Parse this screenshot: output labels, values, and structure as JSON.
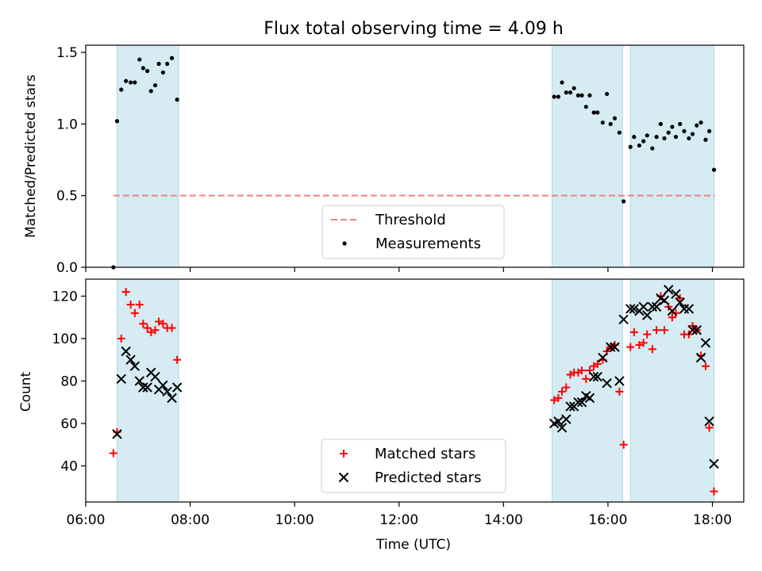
{
  "title": "Flux total observing time = 4.09 h",
  "chart_data": [
    {
      "type": "scatter",
      "ylabel": "Matched/Predicted stars",
      "xlabel": "",
      "xlim": [
        6.0,
        18.6
      ],
      "ylim": [
        0.0,
        1.55
      ],
      "yticks": [
        {
          "v": 0.0,
          "label": "0.0"
        },
        {
          "v": 0.5,
          "label": "0.5"
        },
        {
          "v": 1.0,
          "label": "1.0"
        },
        {
          "v": 1.5,
          "label": "1.5"
        }
      ],
      "shaded_ranges": [
        [
          6.6,
          7.78
        ],
        [
          14.93,
          16.28
        ],
        [
          16.43,
          18.03
        ]
      ],
      "threshold": {
        "name": "Threshold",
        "value": 0.5,
        "x_range": [
          6.53,
          18.05
        ],
        "color": "#f08080"
      },
      "legend": {
        "placement": "lower-center",
        "entries": [
          "Threshold",
          "Measurements"
        ]
      },
      "series": [
        {
          "name": "Measurements",
          "color": "#000000",
          "points": [
            [
              6.53,
              0.0
            ],
            [
              6.6,
              1.02
            ],
            [
              6.68,
              1.24
            ],
            [
              6.77,
              1.3
            ],
            [
              6.86,
              1.29
            ],
            [
              6.94,
              1.29
            ],
            [
              7.03,
              1.45
            ],
            [
              7.1,
              1.39
            ],
            [
              7.18,
              1.37
            ],
            [
              7.25,
              1.23
            ],
            [
              7.33,
              1.27
            ],
            [
              7.4,
              1.42
            ],
            [
              7.48,
              1.36
            ],
            [
              7.56,
              1.42
            ],
            [
              7.65,
              1.46
            ],
            [
              7.75,
              1.17
            ],
            [
              14.97,
              1.19
            ],
            [
              15.05,
              1.19
            ],
            [
              15.12,
              1.29
            ],
            [
              15.2,
              1.22
            ],
            [
              15.28,
              1.22
            ],
            [
              15.35,
              1.25
            ],
            [
              15.43,
              1.2
            ],
            [
              15.5,
              1.2
            ],
            [
              15.58,
              1.12
            ],
            [
              15.65,
              1.2
            ],
            [
              15.73,
              1.08
            ],
            [
              15.8,
              1.08
            ],
            [
              15.9,
              1.01
            ],
            [
              15.98,
              1.21
            ],
            [
              16.05,
              1.0
            ],
            [
              16.13,
              1.04
            ],
            [
              16.22,
              0.94
            ],
            [
              16.3,
              0.46
            ],
            [
              16.43,
              0.84
            ],
            [
              16.5,
              0.91
            ],
            [
              16.6,
              0.85
            ],
            [
              16.68,
              0.88
            ],
            [
              16.75,
              0.92
            ],
            [
              16.85,
              0.83
            ],
            [
              16.93,
              0.91
            ],
            [
              17.01,
              1.0
            ],
            [
              17.08,
              0.9
            ],
            [
              17.16,
              0.94
            ],
            [
              17.23,
              0.98
            ],
            [
              17.3,
              0.91
            ],
            [
              17.38,
              1.0
            ],
            [
              17.46,
              0.95
            ],
            [
              17.55,
              0.9
            ],
            [
              17.62,
              0.93
            ],
            [
              17.7,
              0.99
            ],
            [
              17.78,
              1.01
            ],
            [
              17.87,
              0.89
            ],
            [
              17.94,
              0.95
            ],
            [
              18.03,
              0.68
            ]
          ]
        }
      ]
    },
    {
      "type": "scatter",
      "ylabel": "Count",
      "xlabel": "Time (UTC)",
      "xlim": [
        6.0,
        18.6
      ],
      "ylim": [
        23.0,
        128.0
      ],
      "xticks": [
        {
          "v": 6,
          "label": "06:00"
        },
        {
          "v": 8,
          "label": "08:00"
        },
        {
          "v": 10,
          "label": "10:00"
        },
        {
          "v": 12,
          "label": "12:00"
        },
        {
          "v": 14,
          "label": "14:00"
        },
        {
          "v": 16,
          "label": "16:00"
        },
        {
          "v": 18,
          "label": "18:00"
        }
      ],
      "yticks": [
        {
          "v": 40,
          "label": "40"
        },
        {
          "v": 60,
          "label": "60"
        },
        {
          "v": 80,
          "label": "80"
        },
        {
          "v": 100,
          "label": "100"
        },
        {
          "v": 120,
          "label": "120"
        }
      ],
      "shaded_ranges": [
        [
          6.6,
          7.78
        ],
        [
          14.93,
          16.28
        ],
        [
          16.43,
          18.03
        ]
      ],
      "legend": {
        "placement": "lower-center",
        "entries": [
          "Matched stars",
          "Predicted stars"
        ]
      },
      "series": [
        {
          "name": "Matched stars",
          "marker": "plus",
          "color": "#ff0000",
          "points": [
            [
              6.53,
              46
            ],
            [
              6.6,
              56
            ],
            [
              6.68,
              100
            ],
            [
              6.77,
              122
            ],
            [
              6.86,
              116
            ],
            [
              6.94,
              112
            ],
            [
              7.03,
              116
            ],
            [
              7.1,
              107
            ],
            [
              7.18,
              105
            ],
            [
              7.25,
              103
            ],
            [
              7.33,
              104
            ],
            [
              7.4,
              108
            ],
            [
              7.48,
              107
            ],
            [
              7.56,
              105
            ],
            [
              7.65,
              105
            ],
            [
              7.75,
              90
            ],
            [
              14.97,
              71
            ],
            [
              15.05,
              72
            ],
            [
              15.12,
              75
            ],
            [
              15.2,
              77
            ],
            [
              15.28,
              83
            ],
            [
              15.35,
              84
            ],
            [
              15.43,
              84
            ],
            [
              15.5,
              85
            ],
            [
              15.58,
              81
            ],
            [
              15.65,
              85
            ],
            [
              15.73,
              87
            ],
            [
              15.8,
              88
            ],
            [
              15.9,
              90
            ],
            [
              15.98,
              94
            ],
            [
              16.05,
              96
            ],
            [
              16.13,
              97
            ],
            [
              16.22,
              75
            ],
            [
              16.3,
              50
            ],
            [
              16.43,
              96
            ],
            [
              16.5,
              103
            ],
            [
              16.6,
              97
            ],
            [
              16.68,
              98
            ],
            [
              16.75,
              102
            ],
            [
              16.85,
              95
            ],
            [
              16.93,
              104
            ],
            [
              17.01,
              120
            ],
            [
              17.08,
              104
            ],
            [
              17.16,
              115
            ],
            [
              17.23,
              110
            ],
            [
              17.3,
              112
            ],
            [
              17.38,
              119
            ],
            [
              17.46,
              102
            ],
            [
              17.55,
              102
            ],
            [
              17.62,
              106
            ],
            [
              17.7,
              104
            ],
            [
              17.78,
              92
            ],
            [
              17.87,
              87
            ],
            [
              17.94,
              58
            ],
            [
              18.03,
              28
            ]
          ]
        },
        {
          "name": "Predicted stars",
          "marker": "x",
          "color": "#000000",
          "points": [
            [
              6.6,
              55
            ],
            [
              6.68,
              81
            ],
            [
              6.77,
              94
            ],
            [
              6.86,
              90
            ],
            [
              6.94,
              87
            ],
            [
              7.03,
              80
            ],
            [
              7.1,
              77
            ],
            [
              7.18,
              77
            ],
            [
              7.25,
              84
            ],
            [
              7.33,
              82
            ],
            [
              7.4,
              76
            ],
            [
              7.48,
              78
            ],
            [
              7.56,
              75
            ],
            [
              7.65,
              72
            ],
            [
              7.75,
              77
            ],
            [
              14.97,
              60
            ],
            [
              15.05,
              61
            ],
            [
              15.12,
              58
            ],
            [
              15.2,
              62
            ],
            [
              15.28,
              68
            ],
            [
              15.35,
              68
            ],
            [
              15.43,
              70
            ],
            [
              15.5,
              70
            ],
            [
              15.58,
              73
            ],
            [
              15.65,
              72
            ],
            [
              15.73,
              82
            ],
            [
              15.8,
              82
            ],
            [
              15.9,
              91
            ],
            [
              15.98,
              79
            ],
            [
              16.05,
              96
            ],
            [
              16.13,
              96
            ],
            [
              16.22,
              80
            ],
            [
              16.3,
              109
            ],
            [
              16.43,
              114
            ],
            [
              16.5,
              114
            ],
            [
              16.6,
              113
            ],
            [
              16.68,
              115
            ],
            [
              16.75,
              111
            ],
            [
              16.85,
              115
            ],
            [
              16.93,
              115
            ],
            [
              17.01,
              119
            ],
            [
              17.08,
              118
            ],
            [
              17.16,
              123
            ],
            [
              17.23,
              113
            ],
            [
              17.3,
              121
            ],
            [
              17.38,
              117
            ],
            [
              17.46,
              114
            ],
            [
              17.55,
              114
            ],
            [
              17.62,
              104
            ],
            [
              17.7,
              104
            ],
            [
              17.78,
              91
            ],
            [
              17.87,
              98
            ],
            [
              17.94,
              61
            ],
            [
              18.03,
              41
            ]
          ]
        }
      ]
    }
  ]
}
